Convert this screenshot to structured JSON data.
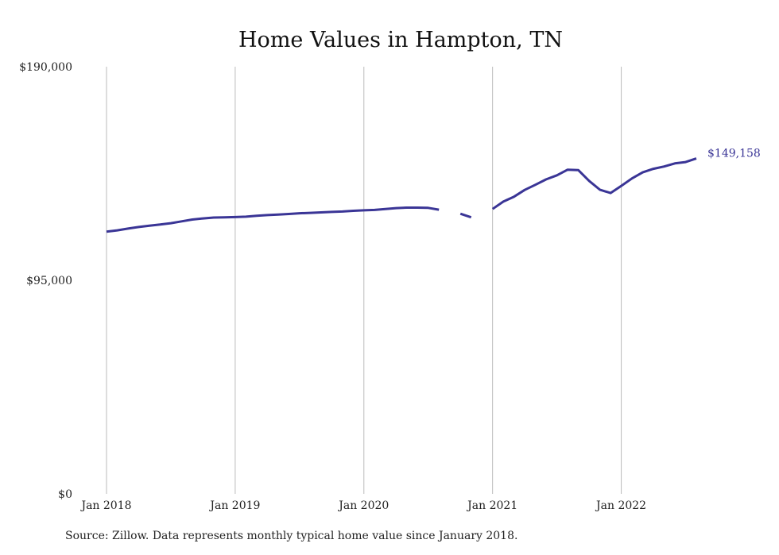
{
  "chart_data": {
    "type": "line",
    "title": "Home Values in Hampton, TN",
    "xlabel": "",
    "ylabel": "",
    "ylim": [
      0,
      190000
    ],
    "y_ticks": [
      {
        "value": 0,
        "label": "$0"
      },
      {
        "value": 95000,
        "label": "$95,000"
      },
      {
        "value": 190000,
        "label": "$190,000"
      }
    ],
    "x_ticks": [
      {
        "value": "2018-01",
        "label": "Jan 2018"
      },
      {
        "value": "2019-01",
        "label": "Jan 2019"
      },
      {
        "value": "2020-01",
        "label": "Jan 2020"
      },
      {
        "value": "2021-01",
        "label": "Jan 2021"
      },
      {
        "value": "2022-01",
        "label": "Jan 2022"
      }
    ],
    "grid": {
      "vertical": true,
      "horizontal": false
    },
    "line_color": "#3a3596",
    "grid_color": "#bbbbbb",
    "series": [
      {
        "points": [
          {
            "x": "2018-01",
            "y": 116600
          },
          {
            "x": "2018-02",
            "y": 117200
          },
          {
            "x": "2018-03",
            "y": 118000
          },
          {
            "x": "2018-04",
            "y": 118700
          },
          {
            "x": "2018-05",
            "y": 119300
          },
          {
            "x": "2018-06",
            "y": 119800
          },
          {
            "x": "2018-07",
            "y": 120400
          },
          {
            "x": "2018-08",
            "y": 121200
          },
          {
            "x": "2018-09",
            "y": 122000
          },
          {
            "x": "2018-10",
            "y": 122500
          },
          {
            "x": "2018-11",
            "y": 122900
          },
          {
            "x": "2018-12",
            "y": 123000
          },
          {
            "x": "2019-01",
            "y": 123100
          },
          {
            "x": "2019-02",
            "y": 123300
          },
          {
            "x": "2019-03",
            "y": 123700
          },
          {
            "x": "2019-04",
            "y": 124000
          },
          {
            "x": "2019-05",
            "y": 124200
          },
          {
            "x": "2019-06",
            "y": 124500
          },
          {
            "x": "2019-07",
            "y": 124800
          },
          {
            "x": "2019-08",
            "y": 125000
          },
          {
            "x": "2019-09",
            "y": 125200
          },
          {
            "x": "2019-10",
            "y": 125400
          },
          {
            "x": "2019-11",
            "y": 125600
          },
          {
            "x": "2019-12",
            "y": 125900
          },
          {
            "x": "2020-01",
            "y": 126100
          },
          {
            "x": "2020-02",
            "y": 126300
          },
          {
            "x": "2020-03",
            "y": 126700
          },
          {
            "x": "2020-04",
            "y": 127100
          },
          {
            "x": "2020-05",
            "y": 127300
          },
          {
            "x": "2020-06",
            "y": 127300
          },
          {
            "x": "2020-07",
            "y": 127200
          },
          {
            "x": "2020-08",
            "y": 126400
          },
          {
            "x": "2020-09",
            "y": null
          },
          {
            "x": "2020-10",
            "y": 124600
          },
          {
            "x": "2020-11",
            "y": 123000
          },
          {
            "x": "2020-12",
            "y": null
          },
          {
            "x": "2021-01",
            "y": 126700
          },
          {
            "x": "2021-02",
            "y": 130000
          },
          {
            "x": "2021-03",
            "y": 132200
          },
          {
            "x": "2021-04",
            "y": 135200
          },
          {
            "x": "2021-05",
            "y": 137500
          },
          {
            "x": "2021-06",
            "y": 139900
          },
          {
            "x": "2021-07",
            "y": 141700
          },
          {
            "x": "2021-08",
            "y": 144200
          },
          {
            "x": "2021-09",
            "y": 144000
          },
          {
            "x": "2021-10",
            "y": 139200
          },
          {
            "x": "2021-11",
            "y": 135300
          },
          {
            "x": "2021-12",
            "y": 133800
          },
          {
            "x": "2022-01",
            "y": 137000
          },
          {
            "x": "2022-02",
            "y": 140300
          },
          {
            "x": "2022-03",
            "y": 143000
          },
          {
            "x": "2022-04",
            "y": 144600
          },
          {
            "x": "2022-05",
            "y": 145600
          },
          {
            "x": "2022-06",
            "y": 147000
          },
          {
            "x": "2022-07",
            "y": 147600
          },
          {
            "x": "2022-08",
            "y": 149158
          }
        ]
      }
    ],
    "end_label": "$149,158"
  },
  "footer": {
    "source": "Source: Zillow. Data represents monthly typical home value since January 2018."
  }
}
